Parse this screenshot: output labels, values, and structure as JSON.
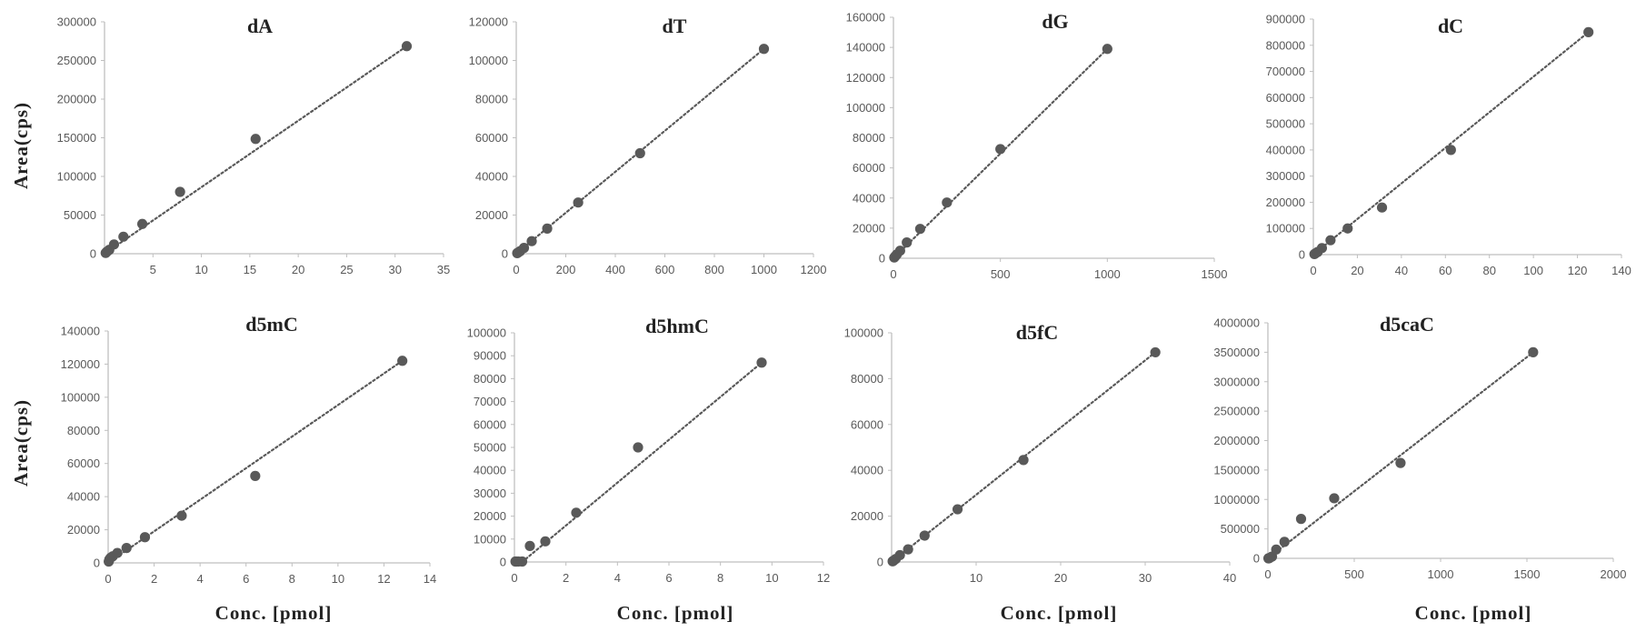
{
  "colors": {
    "marker": "#595959",
    "trend": "#595959",
    "axis": "#bfbfbf",
    "text": "#595959"
  },
  "ylabel": "Area(cps)",
  "xlabel": "Conc. [pmol]",
  "chart_data": [
    {
      "type": "scatter",
      "title": "dA",
      "trendline": "linear",
      "xlim": [
        0,
        35
      ],
      "ylim": [
        0,
        300000
      ],
      "xticks": [
        "5",
        "10",
        "15",
        "20",
        "25",
        "30",
        "35"
      ],
      "yticks": [
        "0",
        "50000",
        "100000",
        "150000",
        "200000",
        "250000",
        "300000"
      ],
      "x": [
        0.12,
        0.24,
        0.49,
        0.98,
        1.95,
        3.9,
        7.8,
        15.6,
        31.2
      ],
      "y": [
        1000,
        2500,
        5000,
        12000,
        22000,
        38500,
        80000,
        148500,
        268500
      ],
      "fit": [
        [
          0,
          0
        ],
        [
          31.2,
          268500
        ]
      ]
    },
    {
      "type": "scatter",
      "title": "dT",
      "trendline": "linear",
      "xlim": [
        0,
        1200
      ],
      "ylim": [
        0,
        120000
      ],
      "xticks": [
        "0",
        "200",
        "400",
        "600",
        "800",
        "1000",
        "1200"
      ],
      "yticks": [
        "0",
        "20000",
        "40000",
        "60000",
        "80000",
        "100000",
        "120000"
      ],
      "x": [
        3.9,
        7.8,
        15.6,
        31.2,
        62.5,
        125,
        250,
        500,
        1000
      ],
      "y": [
        300,
        600,
        1300,
        3000,
        6500,
        13000,
        26500,
        52000,
        106000
      ],
      "fit": [
        [
          0,
          0
        ],
        [
          1000,
          106000
        ]
      ]
    },
    {
      "type": "scatter",
      "title": "dG",
      "trendline": "linear",
      "xlim": [
        0,
        1500
      ],
      "ylim": [
        0,
        160000
      ],
      "xticks": [
        "0",
        "500",
        "1000",
        "1500"
      ],
      "yticks": [
        "0",
        "20000",
        "40000",
        "60000",
        "80000",
        "100000",
        "120000",
        "140000",
        "160000"
      ],
      "x": [
        3.9,
        7.8,
        15.6,
        31.2,
        62.5,
        125,
        250,
        500,
        1000
      ],
      "y": [
        500,
        1200,
        2500,
        5000,
        10500,
        19500,
        37000,
        72500,
        139000
      ],
      "fit": [
        [
          0,
          0
        ],
        [
          1000,
          139000
        ]
      ]
    },
    {
      "type": "scatter",
      "title": "dC",
      "trendline": "linear",
      "xlim": [
        0,
        140
      ],
      "ylim": [
        0,
        900000
      ],
      "xticks": [
        "0",
        "20",
        "40",
        "60",
        "80",
        "100",
        "120",
        "140"
      ],
      "yticks": [
        "0",
        "100000",
        "200000",
        "300000",
        "400000",
        "500000",
        "600000",
        "700000",
        "800000",
        "900000"
      ],
      "x": [
        0.49,
        0.98,
        1.95,
        3.9,
        7.8,
        15.6,
        31.2,
        62.5,
        125
      ],
      "y": [
        2000,
        5000,
        10000,
        25000,
        55000,
        100000,
        180000,
        400000,
        850000
      ],
      "fit": [
        [
          0,
          0
        ],
        [
          125,
          850000
        ]
      ]
    },
    {
      "type": "scatter",
      "title": "d5mC",
      "trendline": "linear",
      "xlim": [
        0,
        14
      ],
      "ylim": [
        0,
        140000
      ],
      "xticks": [
        "0",
        "2",
        "4",
        "6",
        "8",
        "10",
        "12",
        "14"
      ],
      "yticks": [
        "0",
        "20000",
        "40000",
        "60000",
        "80000",
        "100000",
        "120000",
        "140000"
      ],
      "x": [
        0.025,
        0.05,
        0.1,
        0.2,
        0.4,
        0.8,
        1.6,
        3.2,
        6.4,
        12.8
      ],
      "y": [
        800,
        2000,
        3000,
        4000,
        6000,
        9000,
        15500,
        28500,
        52500,
        122000
      ],
      "fit": [
        [
          0,
          0
        ],
        [
          12.8,
          122000
        ]
      ]
    },
    {
      "type": "scatter",
      "title": "d5hmC",
      "trendline": "linear",
      "xlim": [
        0,
        12
      ],
      "ylim": [
        0,
        100000
      ],
      "xticks": [
        "0",
        "2",
        "4",
        "6",
        "8",
        "10",
        "12"
      ],
      "yticks": [
        "0",
        "10000",
        "20000",
        "30000",
        "40000",
        "50000",
        "60000",
        "70000",
        "80000",
        "90000",
        "100000"
      ],
      "x": [
        0.04,
        0.08,
        0.15,
        0.3,
        0.6,
        1.2,
        2.4,
        4.8,
        9.6
      ],
      "y": [
        200,
        200,
        200,
        200,
        7000,
        9000,
        21500,
        50000,
        87000
      ],
      "fit": [
        [
          0.3,
          0
        ],
        [
          9.6,
          87000
        ]
      ]
    },
    {
      "type": "scatter",
      "title": "d5fC",
      "trendline": "linear",
      "xlim": [
        0,
        40
      ],
      "ylim": [
        0,
        100000
      ],
      "xticks": [
        "10",
        "20",
        "30",
        "40"
      ],
      "yticks": [
        "0",
        "20000",
        "40000",
        "60000",
        "80000",
        "100000"
      ],
      "x": [
        0.12,
        0.24,
        0.49,
        0.98,
        1.95,
        3.9,
        7.8,
        15.6,
        31.2
      ],
      "y": [
        300,
        600,
        1300,
        3000,
        5500,
        11500,
        23000,
        44500,
        91500
      ],
      "fit": [
        [
          0,
          0
        ],
        [
          31.2,
          91500
        ]
      ]
    },
    {
      "type": "scatter",
      "title": "d5caC",
      "trendline": "linear",
      "xlim": [
        0,
        2000
      ],
      "ylim": [
        0,
        4000000
      ],
      "xticks": [
        "0",
        "500",
        "1000",
        "1500",
        "2000"
      ],
      "yticks": [
        "0",
        "500000",
        "1000000",
        "1500000",
        "2000000",
        "2500000",
        "3000000",
        "3500000",
        "4000000"
      ],
      "x": [
        3,
        6,
        12,
        24,
        48,
        96,
        192,
        384,
        768,
        1536
      ],
      "y": [
        0,
        0,
        10000,
        30000,
        150000,
        280000,
        670000,
        1020000,
        1620000,
        3500000
      ],
      "fit": [
        [
          0,
          0
        ],
        [
          1536,
          3500000
        ]
      ]
    }
  ]
}
